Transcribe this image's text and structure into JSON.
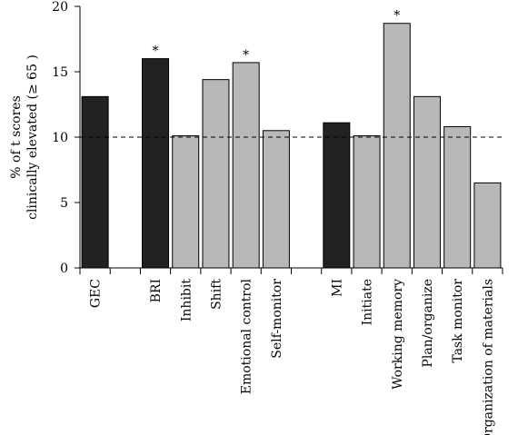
{
  "chart_data": {
    "type": "bar",
    "ylabel": [
      "% of t scores",
      "clinically elevated (≥ 65 )"
    ],
    "ylim": [
      0,
      20
    ],
    "yticks": [
      0,
      5,
      10,
      15,
      20
    ],
    "reference_line": {
      "y": 10,
      "style": "dashed"
    },
    "categories": [
      "GEC",
      "",
      "BRI",
      "Inhibit",
      "Shift",
      "Emotional control",
      "Self-monitor",
      "",
      "MI",
      "Initiate",
      "Working memory",
      "Plan/organize",
      "Task monitor",
      "Organization of materials"
    ],
    "values": [
      13.1,
      null,
      16.0,
      10.1,
      14.4,
      15.7,
      10.5,
      null,
      11.1,
      10.1,
      18.7,
      13.1,
      10.8,
      6.5
    ],
    "kinds": [
      "index",
      "gap",
      "index",
      "scale",
      "scale",
      "scale",
      "scale",
      "gap",
      "index",
      "scale",
      "scale",
      "scale",
      "scale",
      "scale"
    ],
    "significant": [
      false,
      false,
      true,
      false,
      false,
      true,
      false,
      false,
      false,
      false,
      true,
      false,
      false,
      false
    ],
    "significance_marker": "*",
    "colors": {
      "index": "#222222",
      "scale": "#b8b8b8",
      "outline": "#000000"
    }
  }
}
